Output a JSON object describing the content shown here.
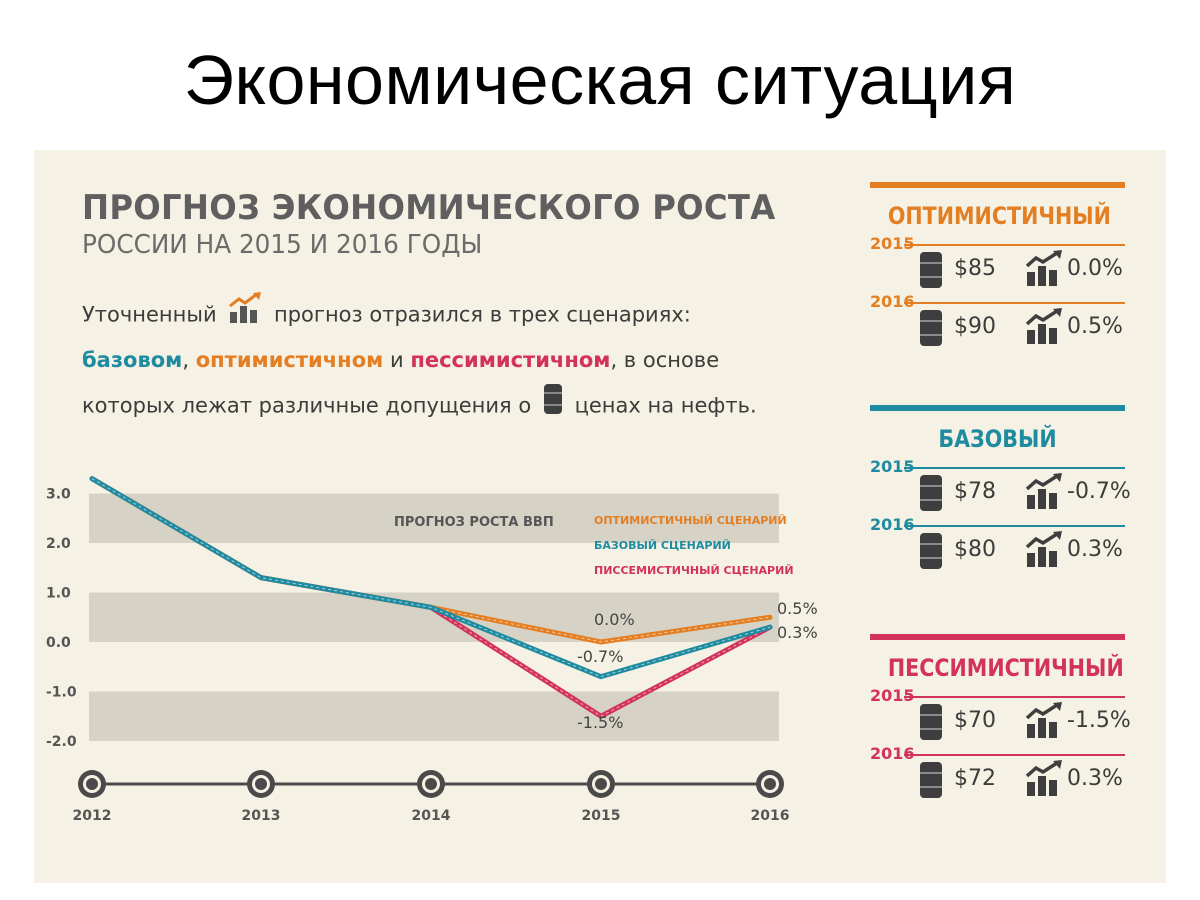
{
  "slide_title": "Экономическая ситуация",
  "header": {
    "title": "ПРОГНОЗ ЭКОНОМИЧЕСКОГО РОСТА",
    "subtitle": "РОССИИ НА 2015 И 2016 ГОДЫ"
  },
  "intro": {
    "p1_a": "Уточненный",
    "p1_b": "прогноз отразился в трех сценариях:",
    "base": "базовом",
    "comma": ",",
    "opt": "оптимистичном",
    "and": "и",
    "pes": "пессимистичном",
    "p2_tail": ", в основе",
    "p3_a": "которых лежат различные допущения о",
    "p3_b": "ценах на нефть."
  },
  "colors": {
    "optimistic": "#e47e23",
    "base": "#1f8ba0",
    "pessimistic": "#d3325a",
    "band": "#d6d2c6",
    "panel": "#f5f1e4"
  },
  "chart_data": {
    "type": "line",
    "title": "ПРОГНОЗ РОСТА ВВП",
    "x": [
      "2012",
      "2013",
      "2014",
      "2015",
      "2016"
    ],
    "y_ticks": [
      "3.0",
      "2.0",
      "1.0",
      "0.0",
      "-1.0",
      "-2.0"
    ],
    "ylim": [
      -2.0,
      3.0
    ],
    "series": [
      {
        "name": "ОПТИМИСТИЧНЫЙ СЦЕНАРИЙ",
        "color": "#e47e23",
        "values": [
          3.3,
          1.3,
          0.7,
          0.0,
          0.5
        ]
      },
      {
        "name": "БАЗОВЫЙ СЦЕНАРИЙ",
        "color": "#1f8ba0",
        "values": [
          3.3,
          1.3,
          0.7,
          -0.7,
          0.3
        ]
      },
      {
        "name": "ПИССЕМИСТИЧНЫЙ СЦЕНАРИЙ",
        "color": "#d3325a",
        "values": [
          3.3,
          1.3,
          0.7,
          -1.5,
          0.3
        ]
      }
    ],
    "annotations": [
      {
        "text": "0.0%",
        "x": "2015",
        "y": 0.0
      },
      {
        "text": "-0.7%",
        "x": "2015",
        "y": -0.7
      },
      {
        "text": "-1.5%",
        "x": "2015",
        "y": -1.5
      },
      {
        "text": "0.5%",
        "x": "2016",
        "y": 0.5
      },
      {
        "text": "0.3%",
        "x": "2016",
        "y": 0.3
      }
    ],
    "legend_position": "top-right",
    "grid": "alternating-bands"
  },
  "scenarios": [
    {
      "title": "ОПТИМИСТИЧНЫЙ",
      "color": "#e47e23",
      "rows": [
        {
          "year": "2015",
          "price": "$85",
          "growth": "0.0%"
        },
        {
          "year": "2016",
          "price": "$90",
          "growth": "0.5%"
        }
      ]
    },
    {
      "title": "БАЗОВЫЙ",
      "color": "#1f8ba0",
      "rows": [
        {
          "year": "2015",
          "price": "$78",
          "growth": "-0.7%"
        },
        {
          "year": "2016",
          "price": "$80",
          "growth": "0.3%"
        }
      ]
    },
    {
      "title": "ПЕССИМИСТИЧНЫЙ",
      "color": "#d3325a",
      "rows": [
        {
          "year": "2015",
          "price": "$70",
          "growth": "-1.5%"
        },
        {
          "year": "2016",
          "price": "$72",
          "growth": "0.3%"
        }
      ]
    }
  ]
}
